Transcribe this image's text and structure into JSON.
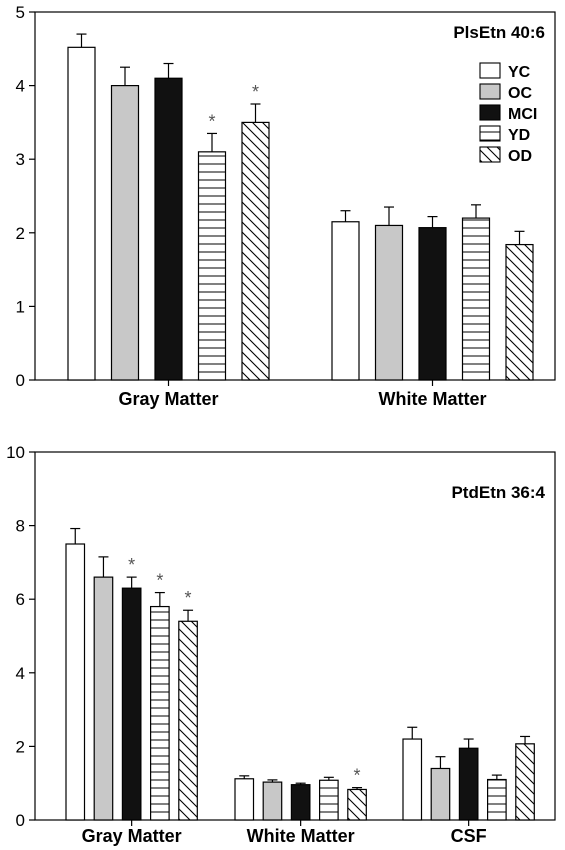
{
  "chart_data": [
    {
      "type": "bar",
      "title": "PlsEtn 40:6",
      "categories": [
        "Gray Matter",
        "White Matter"
      ],
      "ylim": [
        0,
        5
      ],
      "yticks": [
        0,
        1,
        2,
        3,
        4,
        5
      ],
      "legend": {
        "placement": "top-right",
        "entries": [
          "YC",
          "OC",
          "MCI",
          "YD",
          "OD"
        ]
      },
      "series": [
        {
          "name": "YC",
          "fill": "white",
          "values": [
            4.52,
            2.15
          ],
          "errors": [
            0.18,
            0.15
          ],
          "significant": [
            false,
            false
          ]
        },
        {
          "name": "OC",
          "fill": "gray",
          "values": [
            4.0,
            2.1
          ],
          "errors": [
            0.25,
            0.25
          ],
          "significant": [
            false,
            false
          ]
        },
        {
          "name": "MCI",
          "fill": "black",
          "values": [
            4.1,
            2.07
          ],
          "errors": [
            0.2,
            0.15
          ],
          "significant": [
            false,
            false
          ]
        },
        {
          "name": "YD",
          "fill": "hlines",
          "values": [
            3.1,
            2.2
          ],
          "errors": [
            0.25,
            0.18
          ],
          "significant": [
            true,
            false
          ]
        },
        {
          "name": "OD",
          "fill": "diagonal",
          "values": [
            3.5,
            1.84
          ],
          "errors": [
            0.25,
            0.18
          ],
          "significant": [
            true,
            false
          ]
        }
      ]
    },
    {
      "type": "bar",
      "title": "PtdEtn 36:4",
      "categories": [
        "Gray Matter",
        "White Matter",
        "CSF"
      ],
      "ylim": [
        0,
        10
      ],
      "yticks": [
        0,
        2,
        4,
        6,
        8,
        10
      ],
      "series": [
        {
          "name": "YC",
          "fill": "white",
          "values": [
            7.5,
            1.12,
            2.2
          ],
          "errors": [
            0.42,
            0.08,
            0.32
          ],
          "significant": [
            false,
            false,
            false
          ]
        },
        {
          "name": "OC",
          "fill": "gray",
          "values": [
            6.6,
            1.03,
            1.4
          ],
          "errors": [
            0.55,
            0.06,
            0.32
          ],
          "significant": [
            false,
            false,
            false
          ]
        },
        {
          "name": "MCI",
          "fill": "black",
          "values": [
            6.3,
            0.96,
            1.95
          ],
          "errors": [
            0.3,
            0.04,
            0.25
          ],
          "significant": [
            true,
            false,
            false
          ]
        },
        {
          "name": "YD",
          "fill": "hlines",
          "values": [
            5.8,
            1.08,
            1.1
          ],
          "errors": [
            0.38,
            0.08,
            0.12
          ],
          "significant": [
            true,
            false,
            false
          ]
        },
        {
          "name": "OD",
          "fill": "diagonal",
          "values": [
            5.4,
            0.83,
            2.07
          ],
          "errors": [
            0.3,
            0.05,
            0.2
          ],
          "significant": [
            true,
            true,
            false
          ]
        }
      ]
    }
  ],
  "significance_marker": "*"
}
